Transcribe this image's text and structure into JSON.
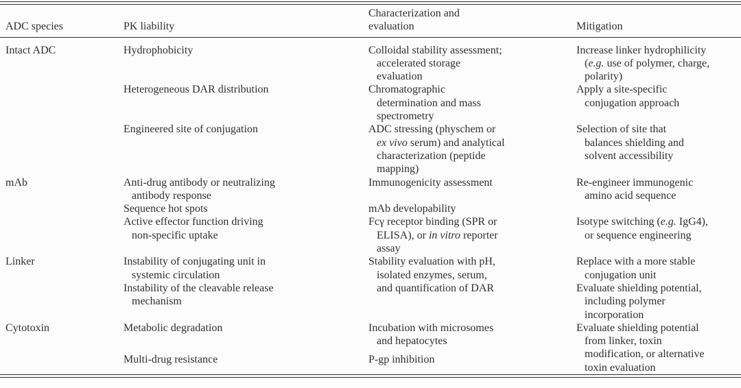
{
  "colors": {
    "background": "#fcfcfc",
    "text": "#2f2f2f",
    "rule": "#2e2e2e"
  },
  "table": {
    "columns": [
      {
        "id": "species",
        "lines": [
          "ADC species"
        ]
      },
      {
        "id": "liability",
        "lines": [
          "PK liability"
        ]
      },
      {
        "id": "characterization",
        "lines": [
          "Characterization and",
          "evaluation"
        ]
      },
      {
        "id": "mitigation",
        "lines": [
          "Mitigation"
        ]
      }
    ],
    "groups": [
      {
        "species": "Intact ADC",
        "rows": [
          {
            "liability": {
              "lines": [
                "Hydrophobicity"
              ]
            },
            "characterization": {
              "lines": [
                "Colloidal stability assessment;",
                "accelerated storage",
                "evaluation"
              ]
            },
            "mitigation": {
              "lines": [
                "Increase linker hydrophilicity",
                "(*e.g.* use of polymer, charge,",
                "polarity)"
              ]
            }
          },
          {
            "liability": {
              "lines": [
                "Heterogeneous DAR distribution"
              ]
            },
            "characterization": {
              "lines": [
                "Chromatographic",
                "determination and mass",
                "spectrometry"
              ]
            },
            "mitigation": {
              "lines": [
                "Apply a site-specific",
                "conjugation approach"
              ]
            }
          },
          {
            "liability": {
              "lines": [
                "Engineered site of conjugation"
              ]
            },
            "characterization": {
              "lines": [
                "ADC stressing (physchem or",
                "*ex vivo* serum) and analytical",
                "characterization (peptide",
                "mapping)"
              ]
            },
            "mitigation": {
              "lines": [
                "Selection of site that",
                "balances shielding and",
                "solvent accessibility"
              ]
            }
          }
        ]
      },
      {
        "species": "mAb",
        "rows": [
          {
            "liability": {
              "lines": [
                "Anti-drug antibody or neutralizing",
                "antibody response"
              ]
            },
            "characterization": {
              "lines": [
                "Immunogenicity assessment"
              ]
            },
            "mitigation": {
              "lines": [
                "Re-engineer immunogenic",
                "amino acid sequence"
              ]
            }
          },
          {
            "liability": {
              "lines": [
                "Sequence hot spots"
              ]
            },
            "characterization": {
              "lines": [
                "mAb developability"
              ]
            },
            "mitigation": {
              "lines": []
            }
          },
          {
            "liability": {
              "lines": [
                "Active effector function driving",
                "non-specific uptake"
              ]
            },
            "characterization": {
              "lines": [
                "Fcγ receptor binding (SPR or",
                "ELISA), or *in vitro* reporter",
                "assay"
              ]
            },
            "mitigation": {
              "lines": [
                "Isotype switching (*e.g.* IgG4),",
                "or sequence engineering"
              ]
            }
          }
        ]
      },
      {
        "species": "Linker",
        "rows": [
          {
            "liability": {
              "lines": [
                "Instability of conjugating unit in",
                "systemic circulation"
              ]
            },
            "characterization": {
              "lines": [
                "Stability evaluation with pH,",
                "isolated enzymes, serum,",
                "and quantification of DAR"
              ],
              "span": 2
            },
            "mitigation": {
              "lines": [
                "Replace with a more stable",
                "conjugation unit"
              ]
            }
          },
          {
            "liability": {
              "lines": [
                "Instability of the cleavable release",
                "mechanism"
              ]
            },
            "characterization": null,
            "mitigation": {
              "lines": [
                "Evaluate shielding potential,",
                "including polymer",
                "incorporation"
              ]
            }
          }
        ]
      },
      {
        "species": "Cytotoxin",
        "rows": [
          {
            "liability": {
              "lines": [
                "Metabolic degradation"
              ]
            },
            "characterization": {
              "lines": [
                "Incubation with microsomes",
                "and hepatocytes"
              ]
            },
            "mitigation": {
              "lines": [
                "Evaluate shielding potential",
                "from linker, toxin",
                "modification, or alternative",
                "toxin evaluation"
              ],
              "span": 2
            }
          },
          {
            "liability": {
              "lines": [
                "Multi-drug resistance"
              ]
            },
            "characterization": {
              "lines": [
                "P-gp inhibition"
              ]
            },
            "mitigation": null
          }
        ]
      }
    ]
  }
}
